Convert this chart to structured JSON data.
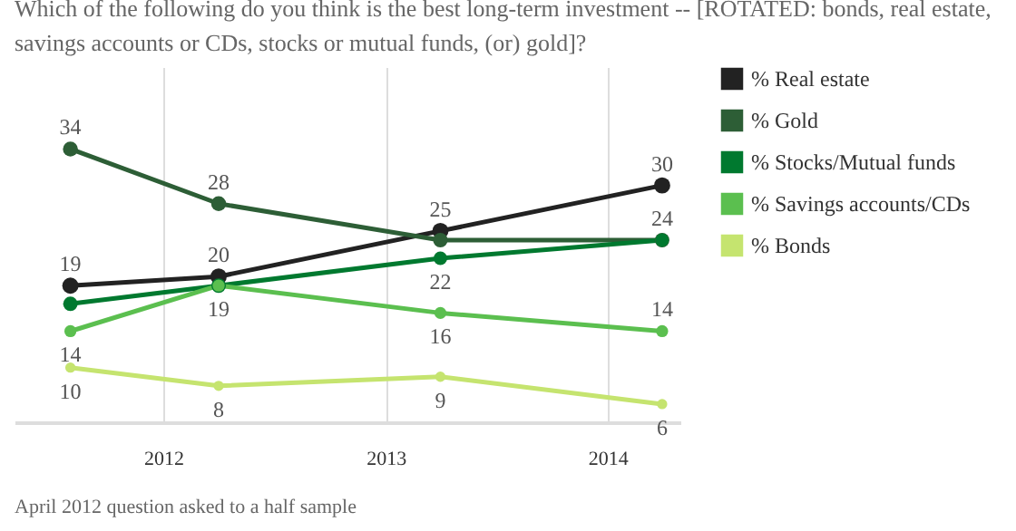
{
  "chart_data": {
    "type": "line",
    "title": "Which of the following do you think is the best long-term investment -- [ROTATED: bonds, real estate, savings accounts or CDs, stocks or mutual funds, (or) gold]?",
    "x": [
      "2011-08",
      "2012-04",
      "2013-04",
      "2014-04"
    ],
    "series": [
      {
        "name": "% Real estate",
        "color": "#222222",
        "values": [
          19,
          20,
          25,
          30
        ],
        "value_labels": [
          "19",
          "20",
          "25",
          "30"
        ]
      },
      {
        "name": "% Gold",
        "color": "#2d5e36",
        "values": [
          34,
          28,
          24,
          24
        ],
        "value_labels": [
          "34",
          "28",
          null,
          null
        ]
      },
      {
        "name": "% Stocks/Mutual funds",
        "color": "#00792f",
        "values": [
          17,
          19,
          22,
          24
        ],
        "value_labels": [
          null,
          null,
          "22",
          "24"
        ]
      },
      {
        "name": "% Savings accounts/CDs",
        "color": "#5bbf4f",
        "values": [
          14,
          19,
          16,
          14
        ],
        "value_labels": [
          "14",
          "19",
          "16",
          "14"
        ]
      },
      {
        "name": "% Bonds",
        "color": "#c5e46f",
        "values": [
          10,
          8,
          9,
          6
        ],
        "value_labels": [
          "10",
          "8",
          "9",
          "6"
        ]
      }
    ],
    "xlim": [
      "2011-05",
      "2014-05"
    ],
    "xticks": [
      "2012",
      "2013",
      "2014"
    ],
    "ylim": [
      4,
      43
    ],
    "tick_labels": "x",
    "grid": "x",
    "legend": "top right",
    "marker": "circle",
    "line_style": "solid",
    "annotations": [
      "April 2012 question asked to a half sample"
    ]
  }
}
